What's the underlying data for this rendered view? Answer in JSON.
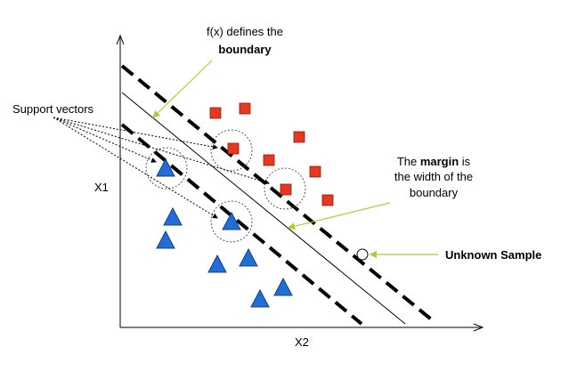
{
  "axes": {
    "x_label": "X2",
    "y_label": "X1"
  },
  "annotations": {
    "boundary": {
      "line1": "f(x) defines the",
      "line2": "boundary"
    },
    "support_vectors": "Support vectors",
    "margin": {
      "pre": "The ",
      "bold": "margin",
      "post": " is",
      "line2": "the width of the",
      "line3": "boundary"
    },
    "unknown": "Unknown Sample"
  },
  "colors": {
    "square": "#e8371f",
    "triangle": "#1f6fd6",
    "leader": "#a8cf3a"
  },
  "class_a": {
    "shape": "square",
    "count": 9
  },
  "class_b": {
    "shape": "triangle",
    "count": 9
  },
  "support_vector_count": 4,
  "unknown_sample": {
    "shape": "open-circle"
  }
}
